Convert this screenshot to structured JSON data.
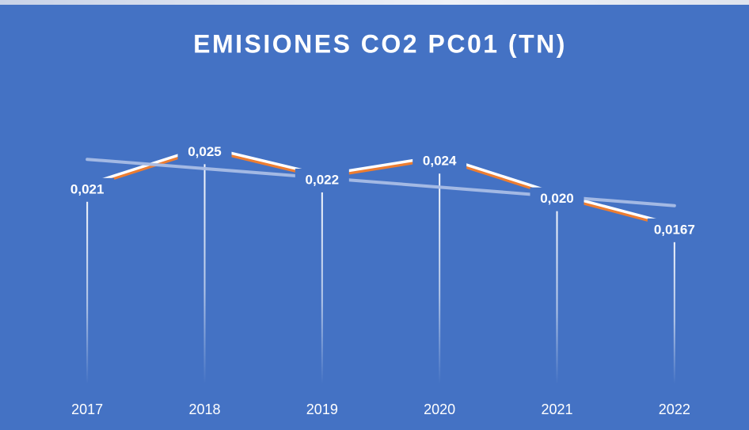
{
  "chart_data": {
    "type": "line",
    "title": "EMISIONES CO2 PC01 (TN)",
    "categories": [
      "2017",
      "2018",
      "2019",
      "2020",
      "2021",
      "2022"
    ],
    "series": [
      {
        "name": "PC01",
        "color": "#ed7d31",
        "values": [
          0.021,
          0.025,
          0.022,
          0.024,
          0.02,
          0.0167
        ],
        "value_labels": [
          "0,021",
          "0,025",
          "0,022",
          "0,024",
          "0,020",
          "0,0167"
        ]
      }
    ],
    "ylim": [
      0,
      0.03
    ],
    "trendline": true,
    "drop_lines": true
  }
}
